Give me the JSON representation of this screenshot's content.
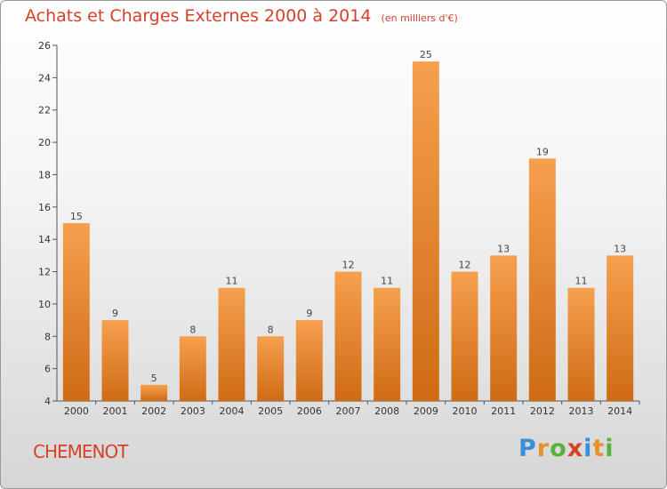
{
  "header": {
    "title": "Achats et Charges Externes 2000 à 2014",
    "subtitle": "(en milliers d'€)"
  },
  "footer": {
    "town": "CHEMENOT",
    "logo_letters": [
      {
        "char": "P",
        "color": "#3a8fd8"
      },
      {
        "char": "r",
        "color": "#e8912a"
      },
      {
        "char": "o",
        "color": "#56b23c"
      },
      {
        "char": "x",
        "color": "#d7402a"
      },
      {
        "char": "i",
        "color": "#3a8fd8"
      },
      {
        "char": "t",
        "color": "#e8912a"
      },
      {
        "char": "i",
        "color": "#56b23c"
      }
    ]
  },
  "chart_data": {
    "type": "bar",
    "title": "Achats et Charges Externes 2000 à 2014",
    "subtitle": "(en milliers d'€)",
    "categories": [
      "2000",
      "2001",
      "2002",
      "2003",
      "2004",
      "2005",
      "2006",
      "2007",
      "2008",
      "2009",
      "2010",
      "2011",
      "2012",
      "2013",
      "2014"
    ],
    "values": [
      15,
      9,
      5,
      8,
      11,
      8,
      9,
      12,
      11,
      25,
      12,
      13,
      19,
      11,
      13
    ],
    "ylim": [
      4,
      26
    ],
    "yticks": [
      4,
      6,
      8,
      10,
      12,
      14,
      16,
      18,
      20,
      22,
      24,
      26
    ],
    "grid": false,
    "legend": "none",
    "bar_color_top": "#f6a04e",
    "bar_color_bottom": "#cf6b14"
  }
}
